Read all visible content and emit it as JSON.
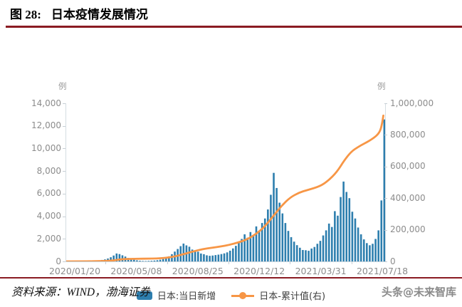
{
  "page": {
    "title_prefix": "图 28:",
    "title": "日本疫情发展情况",
    "source_label": "资料来源：WIND，渤海证券",
    "watermark": "头条@未来智库"
  },
  "colors": {
    "rule_accent": "#8a1b22",
    "bar_blue": "#2d7eae",
    "line_orange": "#f79646",
    "axis_text_gray": "#8c8c8c"
  },
  "chart_data": {
    "type": "bar+line",
    "title": "",
    "unit_left": "例",
    "unit_right": "例",
    "grid": "off",
    "legend_position": "bottom",
    "timeline": {
      "start_date": "2020/01/20",
      "end_date": "2021/07/18",
      "total_days": 545,
      "plot_days": 548,
      "tick_days": [
        0,
        109,
        218,
        327,
        436,
        545
      ]
    },
    "x_tick_labels": [
      "2020/01/20",
      "2020/05/08",
      "2020/08/25",
      "2020/12/12",
      "2021/03/31",
      "2021/07/18"
    ],
    "left_axis": {
      "min": 0,
      "max": 14000,
      "tick_labels": [
        "14,000",
        "12,000",
        "10,000",
        "8,000",
        "6,000",
        "4,000",
        "2,000",
        "0"
      ]
    },
    "right_axis": {
      "min": 0,
      "max": 1000000,
      "tick_labels": [
        "1,000,000",
        "800,000",
        "600,000",
        "400,000",
        "200,000",
        "0"
      ]
    },
    "series": [
      {
        "name": "日本:当日新增",
        "type": "bar",
        "axis": "left",
        "color": "#2d7eae",
        "sample_step_days": 5,
        "values": [
          2,
          1,
          3,
          2,
          5,
          9,
          14,
          25,
          31,
          46,
          59,
          92,
          130,
          178,
          260,
          368,
          520,
          701,
          650,
          540,
          430,
          305,
          225,
          150,
          95,
          58,
          37,
          30,
          42,
          55,
          76,
          105,
          150,
          210,
          310,
          450,
          640,
          870,
          1100,
          1350,
          1580,
          1420,
          1300,
          1050,
          980,
          860,
          700,
          640,
          540,
          495,
          520,
          560,
          600,
          650,
          710,
          800,
          950,
          1150,
          1380,
          1650,
          1990,
          2400,
          2100,
          2600,
          2300,
          3100,
          2700,
          3400,
          3800,
          4600,
          5900,
          7840,
          6500,
          5200,
          4250,
          3400,
          2700,
          2150,
          1750,
          1440,
          1210,
          1010,
          990,
          940,
          1140,
          1280,
          1560,
          1820,
          2300,
          2750,
          3350,
          3050,
          4450,
          4050,
          5700,
          7070,
          6150,
          5600,
          4400,
          3800,
          3000,
          2400,
          1950,
          1620,
          1430,
          1560,
          1990,
          2750,
          5400,
          12570
        ]
      },
      {
        "name": "日本-累计值(右)",
        "type": "line",
        "axis": "right",
        "color": "#f79646",
        "points": [
          [
            0,
            1
          ],
          [
            30,
            15
          ],
          [
            60,
            1900
          ],
          [
            80,
            4800
          ],
          [
            95,
            14000
          ],
          [
            109,
            15600
          ],
          [
            125,
            16800
          ],
          [
            140,
            17400
          ],
          [
            155,
            18300
          ],
          [
            170,
            22000
          ],
          [
            185,
            30000
          ],
          [
            200,
            44000
          ],
          [
            218,
            63000
          ],
          [
            235,
            78000
          ],
          [
            250,
            86000
          ],
          [
            265,
            94000
          ],
          [
            280,
            104000
          ],
          [
            295,
            119000
          ],
          [
            310,
            138000
          ],
          [
            327,
            175000
          ],
          [
            340,
            216000
          ],
          [
            355,
            283000
          ],
          [
            370,
            352000
          ],
          [
            385,
            405000
          ],
          [
            400,
            435000
          ],
          [
            415,
            452000
          ],
          [
            436,
            475000
          ],
          [
            450,
            510000
          ],
          [
            465,
            565000
          ],
          [
            478,
            640000
          ],
          [
            490,
            695000
          ],
          [
            502,
            725000
          ],
          [
            512,
            745000
          ],
          [
            522,
            765000
          ],
          [
            530,
            785000
          ],
          [
            536,
            805000
          ],
          [
            540,
            830000
          ],
          [
            543,
            875000
          ],
          [
            545,
            922000
          ]
        ]
      }
    ]
  }
}
